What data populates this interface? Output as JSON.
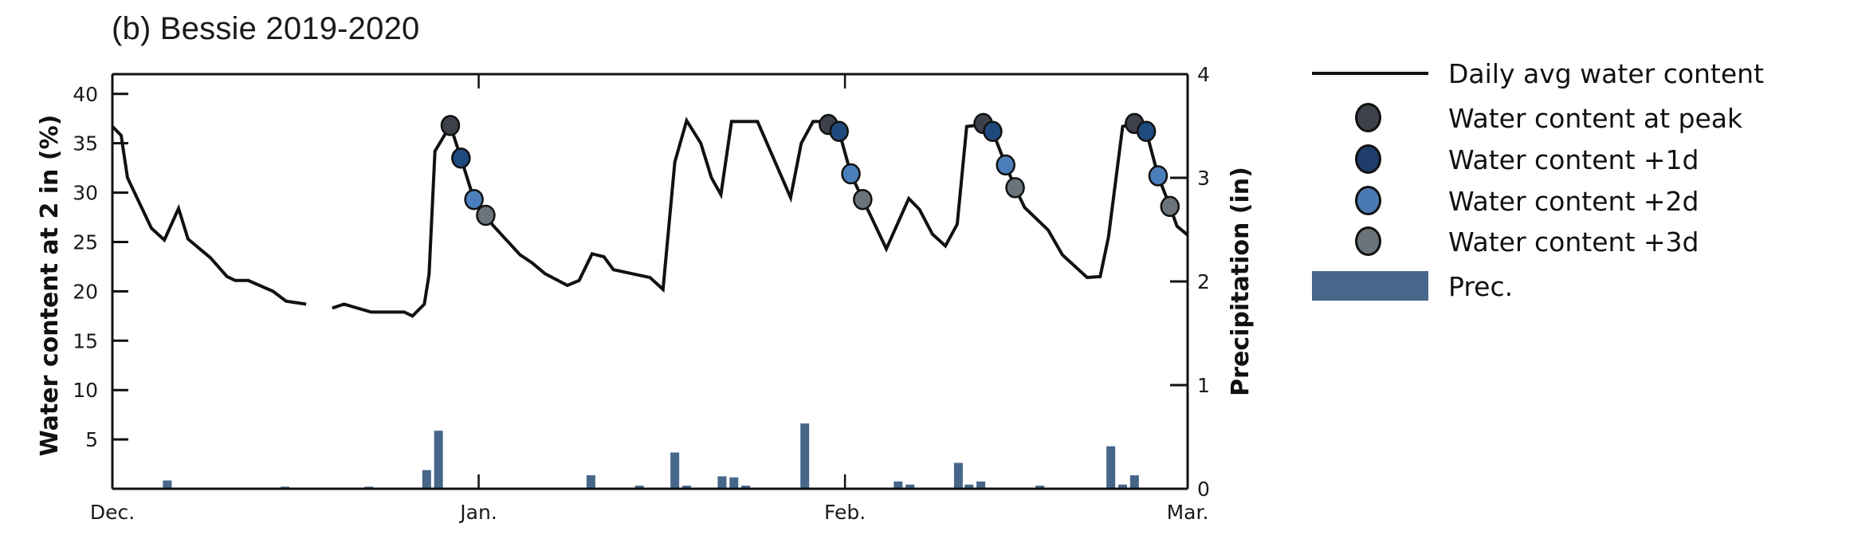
{
  "title": "(b) Bessie 2019-2020",
  "legend": {
    "items": [
      {
        "label": "Daily avg water content",
        "kind": "line",
        "color": "#111111"
      },
      {
        "label": "Water content at peak",
        "kind": "dot",
        "color": "#3d4149"
      },
      {
        "label": "Water content +1d",
        "kind": "dot",
        "color": "#1f3c6b"
      },
      {
        "label": "Water content +2d",
        "kind": "dot",
        "color": "#4a79b3"
      },
      {
        "label": "Water content +3d",
        "kind": "dot",
        "color": "#6b747a"
      },
      {
        "label": "Prec.",
        "kind": "rect",
        "color": "#46668a"
      }
    ]
  },
  "chart_data": {
    "type": "line+bar",
    "title": "(b) Bessie 2019-2020",
    "xlabel": "",
    "ylabel": "Water content at 2 in (%)",
    "y2label": "Precipitation (in)",
    "x_ticks": [
      {
        "label": "Dec.",
        "day": 0
      },
      {
        "label": "Jan.",
        "day": 31
      },
      {
        "label": "Feb.",
        "day": 62
      },
      {
        "label": "Mar.",
        "day": 91
      }
    ],
    "xlim": [
      0,
      91
    ],
    "ylim": [
      0,
      42
    ],
    "y_ticks": [
      5,
      10,
      15,
      20,
      25,
      30,
      35,
      40
    ],
    "y2lim": [
      0,
      4
    ],
    "y2_ticks": [
      0,
      1,
      2,
      3,
      4
    ],
    "grid": false,
    "legend_position": "right",
    "series": [
      {
        "name": "Daily avg water content",
        "type": "line",
        "axis": "left",
        "color": "#111111",
        "segments": [
          [
            [
              0,
              36.7
            ],
            [
              0.74,
              35.8
            ],
            [
              1.28,
              31.5
            ],
            [
              3.3,
              26.4
            ],
            [
              4.4,
              25.2
            ],
            [
              5.6,
              28.4
            ],
            [
              6.4,
              25.3
            ],
            [
              8.3,
              23.4
            ],
            [
              9.7,
              21.5
            ],
            [
              10.4,
              21.1
            ],
            [
              11.5,
              21.1
            ],
            [
              13.6,
              20.0
            ],
            [
              14.7,
              19.0
            ],
            [
              16.4,
              18.7
            ]
          ],
          [
            [
              18.6,
              18.3
            ],
            [
              19.6,
              18.7
            ],
            [
              21.9,
              17.9
            ],
            [
              24.7,
              17.9
            ],
            [
              25.4,
              17.5
            ],
            [
              26.4,
              18.7
            ],
            [
              26.8,
              21.7
            ],
            [
              27.3,
              34.2
            ],
            [
              28.6,
              36.8
            ],
            [
              29.5,
              33.5
            ],
            [
              30.6,
              29.3
            ],
            [
              31.6,
              27.7
            ],
            [
              32.2,
              26.7
            ],
            [
              34.5,
              23.7
            ],
            [
              35.5,
              22.9
            ],
            [
              36.6,
              21.8
            ],
            [
              38.5,
              20.6
            ],
            [
              39.5,
              21.1
            ],
            [
              40.6,
              23.8
            ],
            [
              41.6,
              23.5
            ],
            [
              42.4,
              22.2
            ],
            [
              45.5,
              21.4
            ],
            [
              46.6,
              20.2
            ],
            [
              47.6,
              33.1
            ],
            [
              48.6,
              37.3
            ],
            [
              49.8,
              35.0
            ],
            [
              50.7,
              31.5
            ],
            [
              51.5,
              29.8
            ],
            [
              52.4,
              37.2
            ],
            [
              54.6,
              37.2
            ],
            [
              57.4,
              29.5
            ],
            [
              58.3,
              35.0
            ],
            [
              59.3,
              37.2
            ],
            [
              60.0,
              37.2
            ],
            [
              60.6,
              36.9
            ],
            [
              61.5,
              36.2
            ],
            [
              62.5,
              31.9
            ],
            [
              63.5,
              29.3
            ],
            [
              64.0,
              28.1
            ],
            [
              65.5,
              24.3
            ],
            [
              67.4,
              29.4
            ],
            [
              68.3,
              28.3
            ],
            [
              69.4,
              25.8
            ],
            [
              70.5,
              24.6
            ],
            [
              71.5,
              26.8
            ],
            [
              72.3,
              36.7
            ],
            [
              73.0,
              36.8
            ],
            [
              73.7,
              37.0
            ],
            [
              74.5,
              36.2
            ],
            [
              75.6,
              32.8
            ],
            [
              76.4,
              30.5
            ],
            [
              77.2,
              28.5
            ],
            [
              79.2,
              26.2
            ],
            [
              80.4,
              23.7
            ],
            [
              82.5,
              21.4
            ],
            [
              83.6,
              21.5
            ],
            [
              84.3,
              25.5
            ],
            [
              85.5,
              36.7
            ],
            [
              86.5,
              37.0
            ],
            [
              87.5,
              36.2
            ],
            [
              88.5,
              31.7
            ],
            [
              89.5,
              28.6
            ],
            [
              90.1,
              26.6
            ],
            [
              91.0,
              25.7
            ]
          ]
        ]
      },
      {
        "name": "Water content at peak",
        "type": "scatter",
        "axis": "left",
        "color": "#3d4149",
        "points": [
          [
            28.6,
            36.8
          ],
          [
            60.6,
            36.9
          ],
          [
            73.7,
            37.0
          ],
          [
            86.5,
            37.0
          ]
        ]
      },
      {
        "name": "Water content +1d",
        "type": "scatter",
        "axis": "left",
        "color": "#1e4a7e",
        "points": [
          [
            29.5,
            33.5
          ],
          [
            61.5,
            36.2
          ],
          [
            74.5,
            36.2
          ],
          [
            87.5,
            36.2
          ]
        ]
      },
      {
        "name": "Water content +2d",
        "type": "scatter",
        "axis": "left",
        "color": "#4a7fbb",
        "points": [
          [
            30.6,
            29.3
          ],
          [
            62.5,
            31.9
          ],
          [
            75.6,
            32.8
          ],
          [
            88.5,
            31.7
          ]
        ]
      },
      {
        "name": "Water content +3d",
        "type": "scatter",
        "axis": "left",
        "color": "#6b747a",
        "points": [
          [
            31.6,
            27.7
          ],
          [
            63.5,
            29.3
          ],
          [
            76.4,
            30.5
          ],
          [
            89.5,
            28.6
          ]
        ]
      },
      {
        "name": "Prec.",
        "type": "bar",
        "axis": "right",
        "color": "#46668a",
        "points": [
          [
            4.65,
            0.08
          ],
          [
            14.6,
            0.02
          ],
          [
            21.7,
            0.02
          ],
          [
            26.6,
            0.18
          ],
          [
            27.6,
            0.56
          ],
          [
            40.5,
            0.13
          ],
          [
            44.6,
            0.03
          ],
          [
            47.6,
            0.35
          ],
          [
            48.6,
            0.03
          ],
          [
            51.6,
            0.12
          ],
          [
            52.6,
            0.11
          ],
          [
            53.6,
            0.03
          ],
          [
            58.6,
            0.63
          ],
          [
            66.5,
            0.07
          ],
          [
            67.5,
            0.04
          ],
          [
            71.6,
            0.25
          ],
          [
            72.5,
            0.04
          ],
          [
            73.5,
            0.07
          ],
          [
            78.5,
            0.03
          ],
          [
            84.5,
            0.41
          ],
          [
            85.5,
            0.04
          ],
          [
            86.5,
            0.13
          ]
        ]
      }
    ]
  }
}
